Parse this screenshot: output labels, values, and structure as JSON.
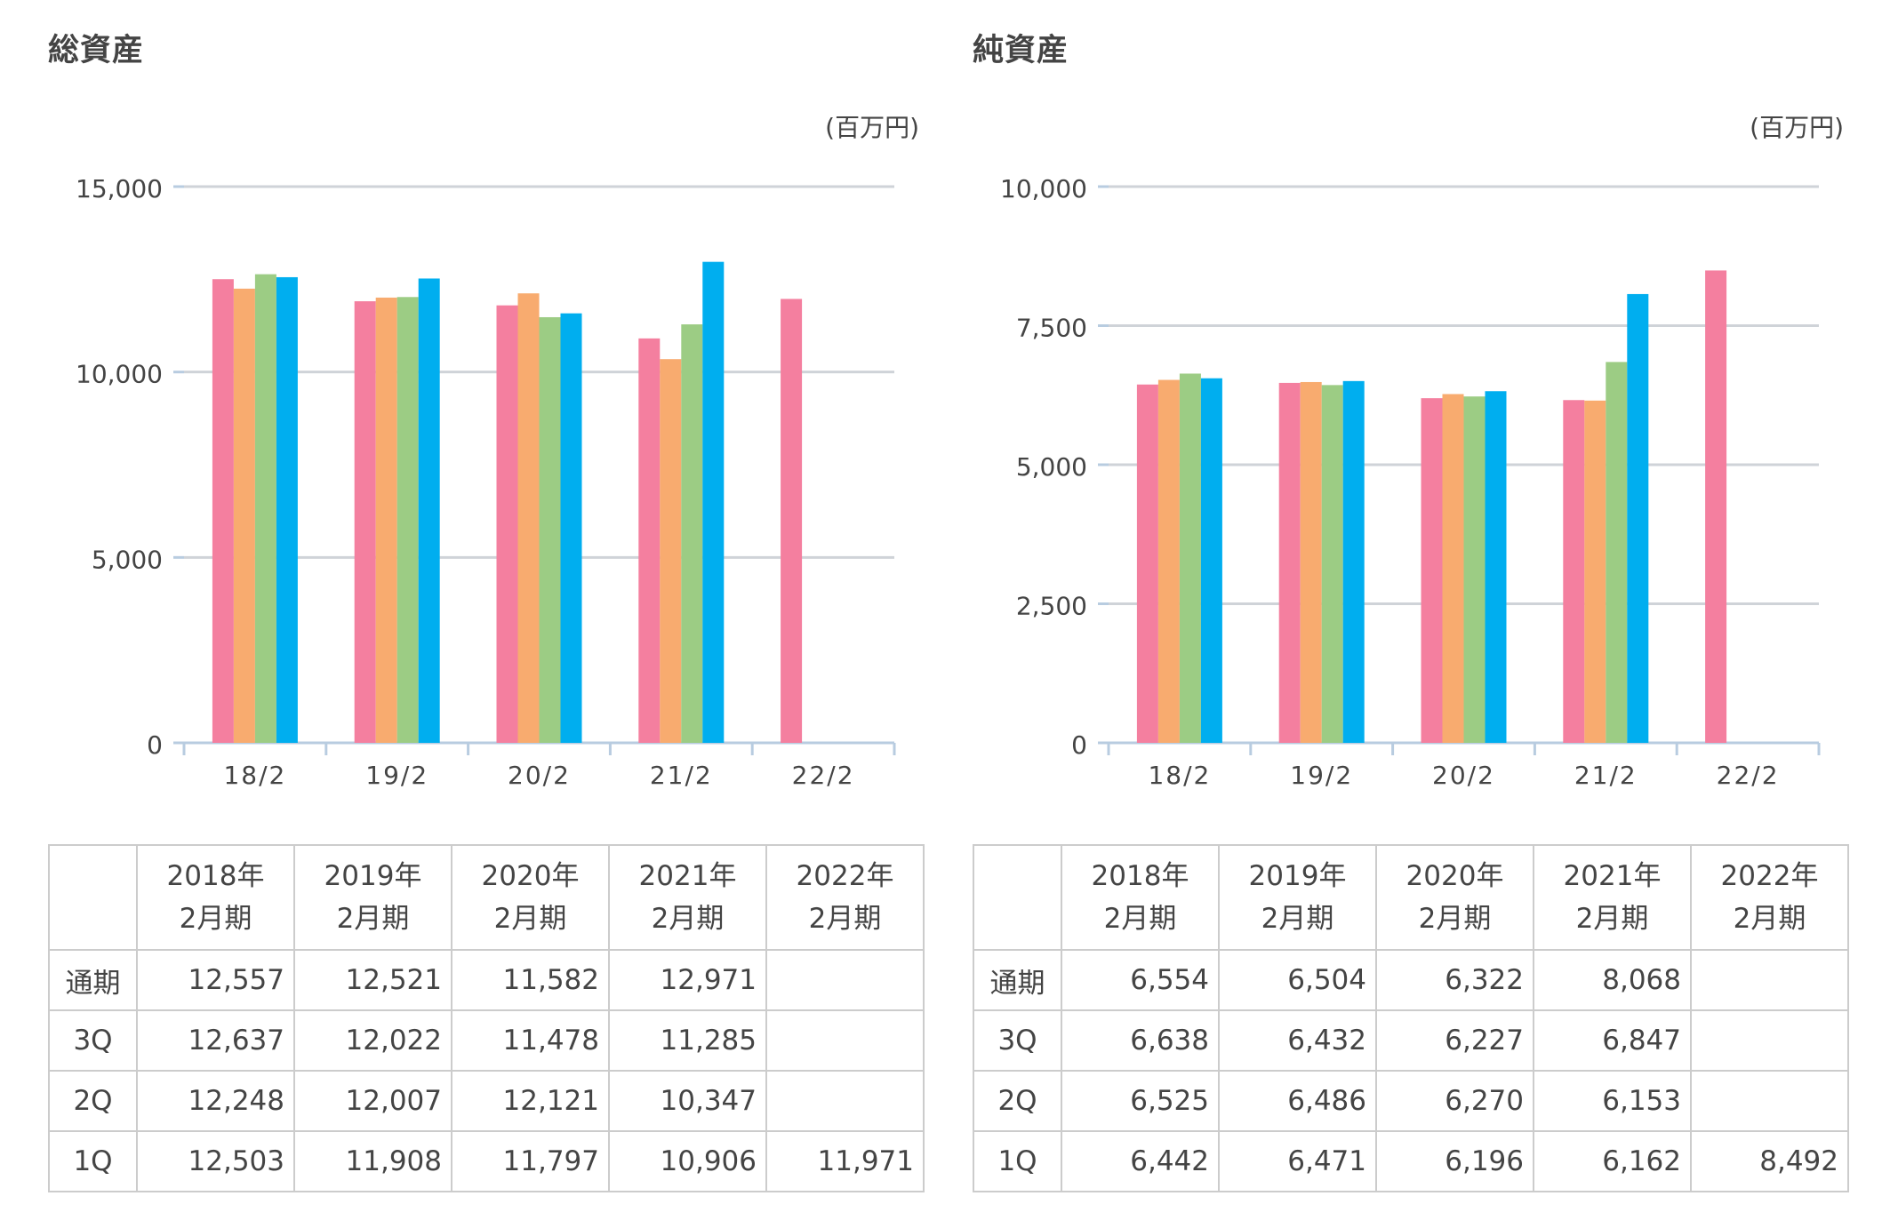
{
  "unit_label": "(百万円)",
  "table": {
    "column_headers": [
      {
        "line1": "2018年",
        "line2": "2月期"
      },
      {
        "line1": "2019年",
        "line2": "2月期"
      },
      {
        "line1": "2020年",
        "line2": "2月期"
      },
      {
        "line1": "2021年",
        "line2": "2月期"
      },
      {
        "line1": "2022年",
        "line2": "2月期"
      }
    ],
    "row_labels": [
      "通期",
      "3Q",
      "2Q",
      "1Q"
    ]
  },
  "colors": {
    "1Q": "#f47f9f",
    "2Q": "#f8ab6f",
    "3Q": "#9ccc84",
    "通期": "#00aeef",
    "gridline": "#cfd3d8",
    "axis": "#b8cce0",
    "border": "#cccccc"
  },
  "chart_data": [
    {
      "type": "bar",
      "title": "総資産",
      "unit": "(百万円)",
      "categories": [
        "18/2",
        "19/2",
        "20/2",
        "21/2",
        "22/2"
      ],
      "ylim": [
        0,
        15000
      ],
      "yticks": [
        0,
        5000,
        10000,
        15000
      ],
      "ytick_labels": [
        "0",
        "5,000",
        "10,000",
        "15,000"
      ],
      "grid": true,
      "series": [
        {
          "key": "1Q",
          "values": [
            12503,
            11908,
            11797,
            10906,
            11971
          ]
        },
        {
          "key": "2Q",
          "values": [
            12248,
            12007,
            12121,
            10347,
            null
          ]
        },
        {
          "key": "3Q",
          "values": [
            12637,
            12022,
            11478,
            11285,
            null
          ]
        },
        {
          "key": "通期",
          "values": [
            12557,
            12521,
            11582,
            12971,
            null
          ]
        }
      ],
      "table_rows": [
        [
          "12,557",
          "12,521",
          "11,582",
          "12,971",
          ""
        ],
        [
          "12,637",
          "12,022",
          "11,478",
          "11,285",
          ""
        ],
        [
          "12,248",
          "12,007",
          "12,121",
          "10,347",
          ""
        ],
        [
          "12,503",
          "11,908",
          "11,797",
          "10,906",
          "11,971"
        ]
      ]
    },
    {
      "type": "bar",
      "title": "純資産",
      "unit": "(百万円)",
      "categories": [
        "18/2",
        "19/2",
        "20/2",
        "21/2",
        "22/2"
      ],
      "ylim": [
        0,
        10000
      ],
      "yticks": [
        0,
        2500,
        5000,
        7500,
        10000
      ],
      "ytick_labels": [
        "0",
        "2,500",
        "5,000",
        "7,500",
        "10,000"
      ],
      "grid": true,
      "series": [
        {
          "key": "1Q",
          "values": [
            6442,
            6471,
            6196,
            6162,
            8492
          ]
        },
        {
          "key": "2Q",
          "values": [
            6525,
            6486,
            6270,
            6153,
            null
          ]
        },
        {
          "key": "3Q",
          "values": [
            6638,
            6432,
            6227,
            6847,
            null
          ]
        },
        {
          "key": "通期",
          "values": [
            6554,
            6504,
            6322,
            8068,
            null
          ]
        }
      ],
      "table_rows": [
        [
          "6,554",
          "6,504",
          "6,322",
          "8,068",
          ""
        ],
        [
          "6,638",
          "6,432",
          "6,227",
          "6,847",
          ""
        ],
        [
          "6,525",
          "6,486",
          "6,270",
          "6,153",
          ""
        ],
        [
          "6,442",
          "6,471",
          "6,196",
          "6,162",
          "8,492"
        ]
      ]
    }
  ]
}
